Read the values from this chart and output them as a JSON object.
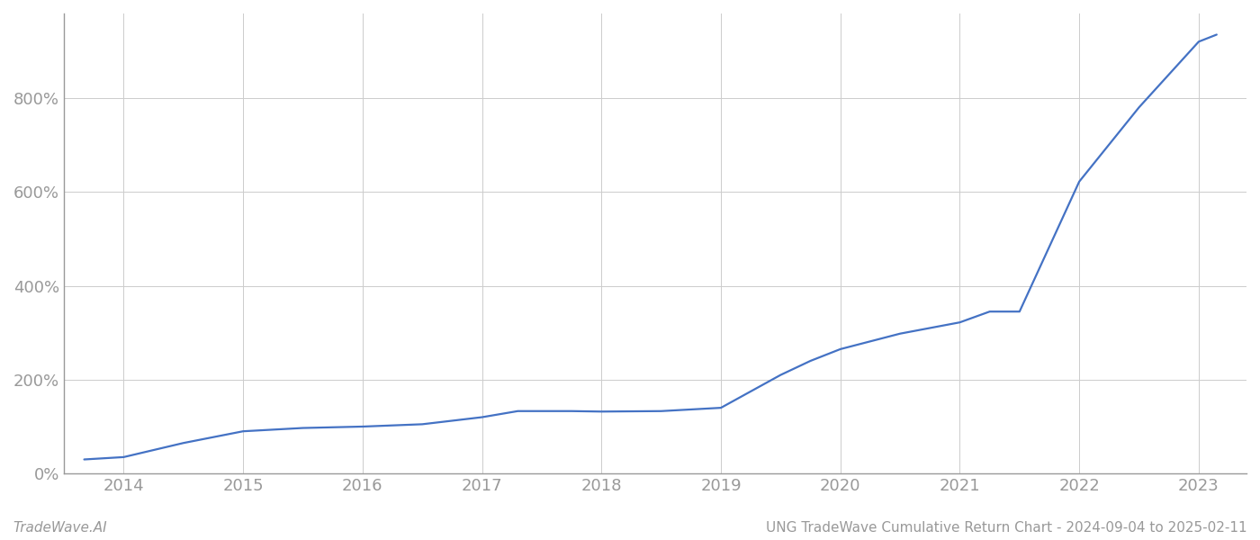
{
  "title": "UNG TradeWave Cumulative Return Chart - 2024-09-04 to 2025-02-11",
  "watermark": "TradeWave.AI",
  "line_color": "#4472c4",
  "background_color": "#ffffff",
  "grid_color": "#cccccc",
  "x_years": [
    2013.67,
    2014.0,
    2014.5,
    2015.0,
    2015.5,
    2016.0,
    2016.5,
    2017.0,
    2017.3,
    2017.75,
    2018.0,
    2018.5,
    2019.0,
    2019.5,
    2019.75,
    2020.0,
    2020.5,
    2021.0,
    2021.25,
    2021.5,
    2022.0,
    2022.5,
    2023.0,
    2023.15
  ],
  "y_values": [
    30,
    35,
    65,
    90,
    97,
    100,
    105,
    120,
    133,
    133,
    132,
    133,
    140,
    210,
    240,
    265,
    298,
    322,
    345,
    345,
    622,
    780,
    920,
    935
  ],
  "xlim": [
    2013.5,
    2023.4
  ],
  "ylim": [
    0,
    980
  ],
  "xticks": [
    2014,
    2015,
    2016,
    2017,
    2018,
    2019,
    2020,
    2021,
    2022,
    2023
  ],
  "yticks": [
    0,
    200,
    400,
    600,
    800
  ],
  "xlabel": "",
  "ylabel": "",
  "line_width": 1.6,
  "tick_label_color": "#999999",
  "axis_color": "#999999",
  "title_fontsize": 11,
  "watermark_fontsize": 11,
  "tick_fontsize": 13
}
